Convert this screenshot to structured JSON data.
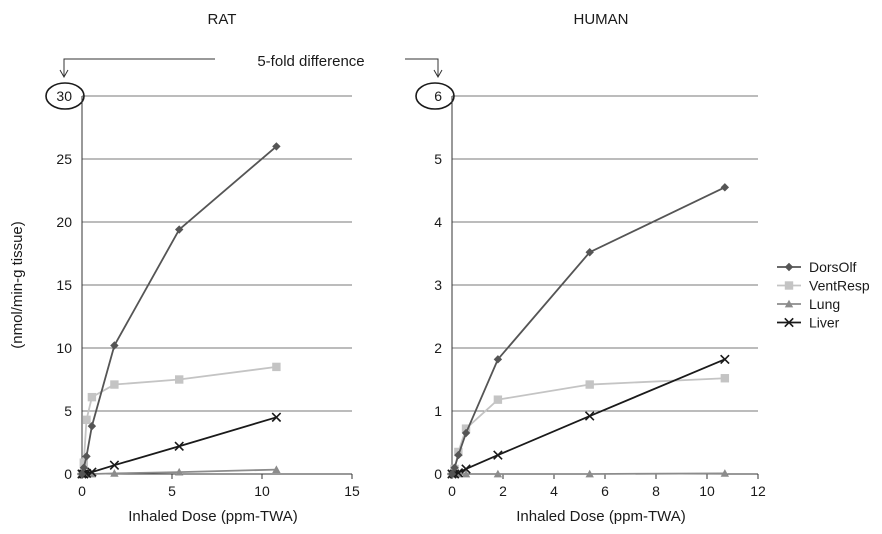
{
  "annotation": {
    "text": "5-fold difference"
  },
  "legend": {
    "placement": "right",
    "entries": [
      {
        "name": "DorsOlf",
        "color": "#555555",
        "marker": "diamond"
      },
      {
        "name": "VentResp",
        "color": "#c4c4c4",
        "marker": "square"
      },
      {
        "name": "Lung",
        "color": "#8c8c8c",
        "marker": "triangle"
      },
      {
        "name": "Liver",
        "color": "#1a1a1a",
        "marker": "x"
      }
    ]
  },
  "chart_data": [
    {
      "type": "line",
      "title": "RAT",
      "xlabel": "Inhaled Dose (ppm-TWA)",
      "ylabel": "(nmol/min-g tissue)",
      "xlim": [
        0,
        15
      ],
      "ylim": [
        0,
        30
      ],
      "xticks": [
        "0",
        "5",
        "10",
        "15"
      ],
      "yticks": [
        "0",
        "5",
        "10",
        "15",
        "20",
        "25",
        "30"
      ],
      "circled_tick": "30",
      "grid": true,
      "x": [
        0,
        0.1,
        0.25,
        0.55,
        1.8,
        5.4,
        10.8
      ],
      "series": [
        {
          "name": "DorsOlf",
          "values": [
            0,
            0.5,
            1.4,
            3.8,
            10.2,
            19.4,
            26.0
          ]
        },
        {
          "name": "VentResp",
          "values": [
            0,
            0.9,
            4.3,
            6.1,
            7.1,
            7.5,
            8.5
          ]
        },
        {
          "name": "Lung",
          "values": [
            0,
            0,
            0,
            0,
            0.05,
            0.15,
            0.35
          ]
        },
        {
          "name": "Liver",
          "values": [
            0,
            0,
            0.05,
            0.15,
            0.7,
            2.2,
            4.5
          ]
        }
      ]
    },
    {
      "type": "line",
      "title": "HUMAN",
      "xlabel": "Inhaled Dose (ppm-TWA)",
      "ylabel": "",
      "xlim": [
        0,
        12
      ],
      "ylim": [
        0,
        6
      ],
      "xticks": [
        "0",
        "2",
        "4",
        "6",
        "8",
        "10",
        "12"
      ],
      "yticks": [
        "0",
        "1",
        "2",
        "3",
        "4",
        "5",
        "6"
      ],
      "circled_tick": "6",
      "grid": true,
      "x": [
        0,
        0.1,
        0.25,
        0.55,
        1.8,
        5.4,
        10.7
      ],
      "series": [
        {
          "name": "DorsOlf",
          "values": [
            0,
            0.1,
            0.3,
            0.65,
            1.82,
            3.52,
            4.55
          ]
        },
        {
          "name": "VentResp",
          "values": [
            0,
            0.08,
            0.35,
            0.72,
            1.18,
            1.42,
            1.52
          ]
        },
        {
          "name": "Lung",
          "values": [
            0,
            0,
            0,
            0,
            0,
            0,
            0.01
          ]
        },
        {
          "name": "Liver",
          "values": [
            0,
            0,
            0.02,
            0.08,
            0.3,
            0.92,
            1.82
          ]
        }
      ]
    }
  ]
}
